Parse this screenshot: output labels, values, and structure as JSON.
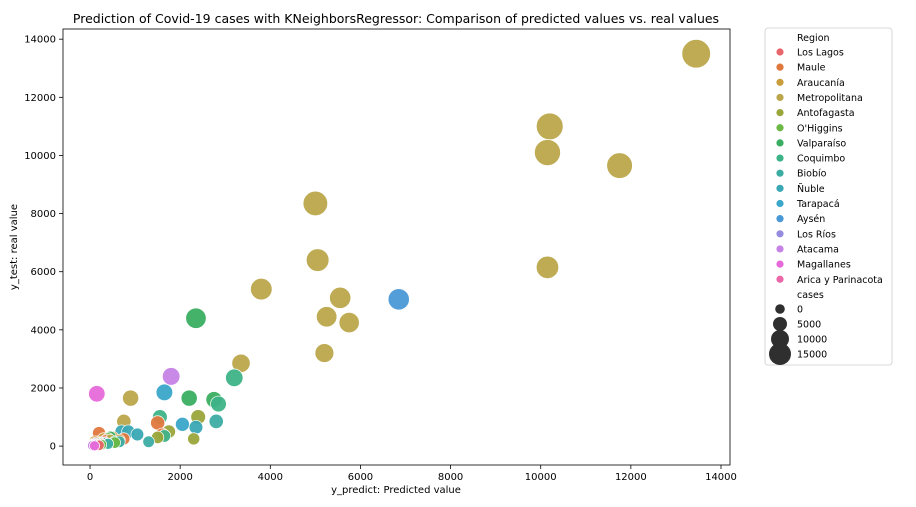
{
  "chart_data": {
    "type": "scatter",
    "title": "Prediction of Covid-19 cases with KNeighborsRegressor: Comparison of predicted values vs. real values",
    "xlabel": "y_predict: Predicted value",
    "ylabel": "y_test: real value",
    "xlim": [
      -600,
      14200
    ],
    "ylim": [
      -650,
      14350
    ],
    "x_ticks": [
      0,
      2000,
      4000,
      6000,
      8000,
      10000,
      12000,
      14000
    ],
    "y_ticks": [
      0,
      2000,
      4000,
      6000,
      8000,
      10000,
      12000,
      14000
    ],
    "x_tick_labels": [
      "0",
      "2000",
      "4000",
      "6000",
      "8000",
      "10000",
      "12000",
      "14000"
    ],
    "y_tick_labels": [
      "0",
      "2000",
      "4000",
      "6000",
      "8000",
      "10000",
      "12000",
      "14000"
    ],
    "legend": {
      "placement": "outside-right",
      "hue_title": "Region",
      "size_title": "cases",
      "size_entries": [
        {
          "label": "0",
          "value": 0
        },
        {
          "label": "5000",
          "value": 5000
        },
        {
          "label": "10000",
          "value": 10000
        },
        {
          "label": "15000",
          "value": 15000
        }
      ]
    },
    "size_color": "#2f2f2f",
    "series": [
      {
        "name": "Los Lagos",
        "color": "#e8656c",
        "points": [
          [
            100,
            100
          ],
          [
            150,
            50
          ],
          [
            250,
            80
          ],
          [
            300,
            150
          ],
          [
            200,
            30
          ]
        ]
      },
      {
        "name": "Maule",
        "color": "#e0783e",
        "points": [
          [
            200,
            450
          ],
          [
            1500,
            800
          ],
          [
            1600,
            400
          ],
          [
            750,
            250
          ],
          [
            350,
            200
          ],
          [
            150,
            150
          ]
        ]
      },
      {
        "name": "Araucanía",
        "color": "#c99d3c",
        "points": [
          [
            100,
            150
          ],
          [
            300,
            250
          ],
          [
            500,
            300
          ],
          [
            50,
            50
          ],
          [
            650,
            200
          ]
        ]
      },
      {
        "name": "Metropolitana",
        "color": "#bba64b",
        "points": [
          [
            13450,
            13500
          ],
          [
            10200,
            11000
          ],
          [
            10150,
            10100
          ],
          [
            11750,
            9650
          ],
          [
            5000,
            8350
          ],
          [
            5050,
            6400
          ],
          [
            10150,
            6150
          ],
          [
            3800,
            5400
          ],
          [
            5550,
            5100
          ],
          [
            5250,
            4450
          ],
          [
            5750,
            4250
          ],
          [
            5200,
            3200
          ],
          [
            3350,
            2850
          ],
          [
            900,
            1650
          ],
          [
            750,
            850
          ],
          [
            450,
            200
          ],
          [
            300,
            100
          ]
        ]
      },
      {
        "name": "Antofagasta",
        "color": "#9aa53a",
        "points": [
          [
            2400,
            1000
          ],
          [
            1750,
            500
          ],
          [
            1500,
            300
          ],
          [
            2300,
            250
          ]
        ]
      },
      {
        "name": "O'Higgins",
        "color": "#6bb845",
        "points": [
          [
            400,
            250
          ],
          [
            350,
            100
          ],
          [
            200,
            100
          ],
          [
            250,
            50
          ],
          [
            550,
            120
          ]
        ]
      },
      {
        "name": "Valparaíso",
        "color": "#3aae60",
        "points": [
          [
            2350,
            4400
          ],
          [
            2200,
            1650
          ],
          [
            2750,
            1600
          ],
          [
            450,
            300
          ],
          [
            550,
            150
          ]
        ]
      },
      {
        "name": "Coquimbo",
        "color": "#3eb388",
        "points": [
          [
            3200,
            2350
          ],
          [
            2850,
            1450
          ],
          [
            1550,
            1000
          ],
          [
            1650,
            350
          ],
          [
            300,
            100
          ]
        ]
      },
      {
        "name": "Biobío",
        "color": "#3bada3",
        "points": [
          [
            2800,
            850
          ],
          [
            1300,
            150
          ],
          [
            650,
            150
          ],
          [
            250,
            120
          ],
          [
            400,
            80
          ]
        ]
      },
      {
        "name": "Ñuble",
        "color": "#3aa8b4",
        "points": [
          [
            1050,
            400
          ],
          [
            700,
            500
          ],
          [
            850,
            500
          ],
          [
            2350,
            650
          ]
        ]
      },
      {
        "name": "Tarapacá",
        "color": "#3ba7c9",
        "points": [
          [
            1650,
            1850
          ],
          [
            2050,
            750
          ]
        ]
      },
      {
        "name": "Aysén",
        "color": "#4a98d6",
        "points": [
          [
            6850,
            5050
          ]
        ]
      },
      {
        "name": "Los Ríos",
        "color": "#958ce0",
        "points": [
          [
            80,
            50
          ],
          [
            120,
            80
          ]
        ]
      },
      {
        "name": "Atacama",
        "color": "#c583e6",
        "points": [
          [
            1800,
            2400
          ],
          [
            60,
            20
          ]
        ]
      },
      {
        "name": "Magallanes",
        "color": "#e66ad9",
        "points": [
          [
            150,
            1800
          ],
          [
            100,
            10
          ]
        ]
      },
      {
        "name": "Arica y Parinacota",
        "color": "#ec67a8",
        "points": [
          [
            50,
            30
          ]
        ]
      }
    ]
  }
}
